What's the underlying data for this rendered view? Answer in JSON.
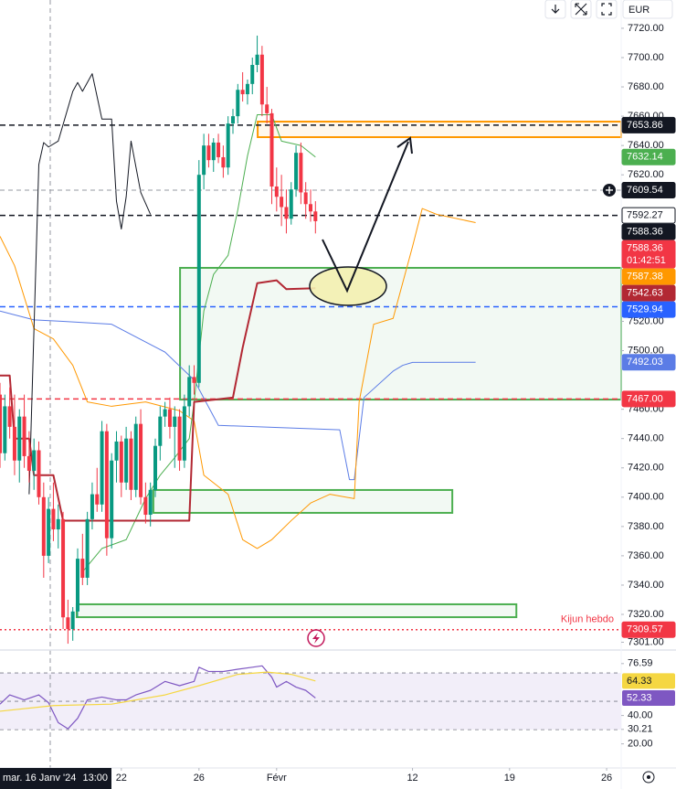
{
  "toolbar": {
    "currency": "EUR"
  },
  "chart_data": [
    {
      "type": "candlestick",
      "x": [
        0,
        1,
        2,
        3,
        4,
        5,
        6,
        7,
        8,
        9,
        10,
        11,
        12,
        13,
        14,
        15,
        16,
        17,
        18,
        19,
        20,
        21,
        22,
        23,
        24,
        25,
        26,
        27,
        28,
        29,
        30,
        31,
        32,
        33,
        34,
        35,
        36,
        37,
        38,
        39,
        40,
        41,
        42,
        43,
        44,
        45,
        46,
        47,
        48,
        49,
        50,
        51,
        52,
        53,
        54,
        55,
        56,
        57,
        58,
        59,
        60,
        61,
        62,
        63,
        64,
        65
      ],
      "open": [
        7470,
        7430,
        7462,
        7448,
        7425,
        7455,
        7428,
        7418,
        7432,
        7400,
        7360,
        7392,
        7378,
        7385,
        7318,
        7310,
        7322,
        7358,
        7345,
        7385,
        7402,
        7395,
        7445,
        7372,
        7425,
        7438,
        7410,
        7440,
        7405,
        7450,
        7400,
        7388,
        7405,
        7435,
        7455,
        7460,
        7448,
        7455,
        7425,
        7462,
        7482,
        7478,
        7620,
        7640,
        7630,
        7642,
        7632,
        7625,
        7655,
        7660,
        7678,
        7675,
        7682,
        7695,
        7702,
        7668,
        7662,
        7612,
        7605,
        7598,
        7590,
        7610,
        7635,
        7608,
        7600,
        7595
      ],
      "high": [
        7478,
        7470,
        7475,
        7470,
        7460,
        7470,
        7445,
        7440,
        7438,
        7410,
        7400,
        7410,
        7395,
        7390,
        7330,
        7325,
        7365,
        7375,
        7390,
        7410,
        7420,
        7452,
        7450,
        7430,
        7445,
        7442,
        7448,
        7445,
        7455,
        7460,
        7410,
        7410,
        7440,
        7462,
        7465,
        7468,
        7462,
        7460,
        7470,
        7490,
        7490,
        7630,
        7648,
        7648,
        7645,
        7648,
        7640,
        7660,
        7665,
        7682,
        7690,
        7685,
        7700,
        7715,
        7708,
        7680,
        7665,
        7625,
        7620,
        7610,
        7615,
        7640,
        7642,
        7615,
        7610,
        7602
      ],
      "low": [
        7420,
        7425,
        7440,
        7415,
        7410,
        7420,
        7410,
        7405,
        7395,
        7345,
        7355,
        7370,
        7365,
        7310,
        7300,
        7302,
        7318,
        7340,
        7340,
        7378,
        7390,
        7390,
        7360,
        7365,
        7410,
        7400,
        7405,
        7398,
        7400,
        7395,
        7382,
        7380,
        7400,
        7425,
        7448,
        7440,
        7420,
        7418,
        7420,
        7455,
        7470,
        7475,
        7610,
        7625,
        7622,
        7628,
        7618,
        7620,
        7648,
        7655,
        7670,
        7668,
        7675,
        7690,
        7660,
        7655,
        7600,
        7595,
        7585,
        7580,
        7586,
        7605,
        7600,
        7590,
        7588,
        7580
      ],
      "close": [
        7430,
        7462,
        7448,
        7425,
        7455,
        7428,
        7418,
        7432,
        7400,
        7360,
        7392,
        7378,
        7385,
        7318,
        7310,
        7322,
        7358,
        7345,
        7385,
        7402,
        7395,
        7445,
        7372,
        7425,
        7438,
        7410,
        7440,
        7405,
        7450,
        7400,
        7388,
        7405,
        7435,
        7455,
        7460,
        7448,
        7455,
        7425,
        7462,
        7482,
        7478,
        7620,
        7640,
        7630,
        7642,
        7632,
        7625,
        7655,
        7660,
        7678,
        7675,
        7682,
        7695,
        7702,
        7668,
        7662,
        7612,
        7605,
        7598,
        7590,
        7610,
        7635,
        7608,
        7600,
        7595,
        7588.36
      ],
      "up_color": "#089981",
      "down_color": "#f23645",
      "countdown": "01:42:51",
      "xlim": [
        0,
        128
      ],
      "xticks": [
        {
          "value": 25,
          "label": "22"
        },
        {
          "value": 41,
          "label": "26"
        },
        {
          "value": 57,
          "label": "Févr"
        },
        {
          "value": 85,
          "label": "12"
        },
        {
          "value": 105,
          "label": "19"
        },
        {
          "value": 125,
          "label": "26"
        }
      ],
      "ylim": [
        7296.3,
        7739.3
      ],
      "yticks": [
        {
          "value": 7720,
          "label": "7720.00"
        },
        {
          "value": 7700,
          "label": "7700.00"
        },
        {
          "value": 7680,
          "label": "7680.00"
        },
        {
          "value": 7660,
          "label": "7660.00"
        },
        {
          "value": 7640,
          "label": "7640.00"
        },
        {
          "value": 7620,
          "label": "7620.00"
        },
        {
          "value": 7520,
          "label": "7520.00"
        },
        {
          "value": 7500,
          "label": "7500.00"
        },
        {
          "value": 7460,
          "label": "7460.00"
        },
        {
          "value": 7440,
          "label": "7440.00"
        },
        {
          "value": 7420,
          "label": "7420.00"
        },
        {
          "value": 7400,
          "label": "7400.00"
        },
        {
          "value": 7380,
          "label": "7380.00"
        },
        {
          "value": 7360,
          "label": "7360.00"
        },
        {
          "value": 7340,
          "label": "7340.00"
        },
        {
          "value": 7320,
          "label": "7320.00"
        },
        {
          "value": 7301,
          "label": "7301.00"
        }
      ],
      "series": [
        {
          "color": "#5b7ce6",
          "width": 1,
          "last_label": true,
          "x": [
            0,
            7,
            13,
            23,
            34,
            40,
            45,
            70,
            72,
            73,
            75,
            81,
            83,
            85,
            98
          ],
          "values": [
            7527,
            7521,
            7520,
            7518,
            7499,
            7480,
            7449,
            7446,
            7412,
            7412,
            7468,
            7486,
            7490,
            7492,
            7492.03
          ]
        },
        {
          "color": "#ff9800",
          "width": 1,
          "last_label": true,
          "x": [
            0,
            3,
            7,
            11,
            15,
            18,
            23,
            30,
            37,
            40,
            42,
            47,
            50,
            53,
            56,
            60,
            64,
            68,
            73,
            74,
            77,
            81,
            85,
            87,
            90,
            98
          ],
          "values": [
            7578,
            7558,
            7515,
            7508,
            7490,
            7465,
            7462,
            7465,
            7459,
            7452,
            7415,
            7402,
            7371,
            7365,
            7371,
            7384,
            7396,
            7402,
            7399,
            7465,
            7518,
            7522,
            7571,
            7597,
            7593,
            7587.38
          ]
        },
        {
          "color": "#131722",
          "width": 1,
          "last_label": false,
          "x": [
            6,
            8,
            9,
            10,
            12,
            15,
            16,
            17,
            19,
            21,
            23,
            24,
            25,
            26,
            27,
            29,
            31
          ],
          "values": [
            7402,
            7627,
            7642,
            7639,
            7643,
            7677,
            7683,
            7677,
            7689,
            7658,
            7658,
            7602,
            7583,
            7605,
            7643,
            7608,
            7593
          ]
        },
        {
          "color": "#4caf50",
          "width": 1,
          "last_label": true,
          "x": [
            17,
            21,
            26,
            30,
            33,
            36,
            39,
            40,
            42,
            44,
            47,
            49,
            51,
            53,
            56,
            58,
            62,
            65
          ],
          "values": [
            7349,
            7365,
            7371,
            7399,
            7415,
            7427,
            7440,
            7465,
            7527,
            7552,
            7565,
            7596,
            7633,
            7661,
            7661,
            7643,
            7640,
            7632.14
          ]
        },
        {
          "color": "#b22833",
          "width": 2,
          "last_label": true,
          "x": [
            0,
            2,
            3,
            6,
            7,
            11,
            13,
            39,
            40,
            48,
            50,
            53,
            57,
            59,
            65
          ],
          "values": [
            7483,
            7483,
            7440,
            7440,
            7415,
            7415,
            7384,
            7384,
            7465,
            7468,
            7502,
            7546,
            7548,
            7542,
            7542.63
          ]
        }
      ],
      "zones": [
        {
          "color": "#ff9800",
          "x": [
            53.1,
            128
          ],
          "y": [
            7645.7,
            7656.3
          ]
        },
        {
          "color": "#4caf50",
          "x": [
            37.1,
            128
          ],
          "y": [
            7466.6,
            7556.5
          ]
        },
        {
          "color": "#4caf50",
          "x": [
            31.6,
            93.2
          ],
          "y": [
            7389.3,
            7404.9
          ]
        },
        {
          "color": "#4caf50",
          "x": [
            15.8,
            106.4
          ],
          "y": [
            7318.1,
            7326.9
          ]
        }
      ],
      "price_labels": [
        {
          "value": 7653.86,
          "bg": "#131722",
          "fg": "#ffffff",
          "line": "dashed"
        },
        {
          "value": 7592.27,
          "bg": "#ffffff",
          "fg": "#131722",
          "line": "dashed"
        },
        {
          "value": 7588.36,
          "bg": "#131722",
          "fg": "#ffffff",
          "line": "none"
        },
        {
          "value": 7529.94,
          "bg": "#2962ff",
          "fg": "#ffffff",
          "line": "dashed"
        },
        {
          "value": 7467,
          "label": "7467.00",
          "bg": "#f23645",
          "fg": "#ffffff",
          "line": "dashed"
        },
        {
          "value": 7309.57,
          "bg": "#f23645",
          "fg": "#ffffff",
          "line": "dotted",
          "note": "Kijun hebdo"
        }
      ],
      "crosshair": {
        "x": 10.35,
        "y": 7609.54,
        "date": "mar. 16 Janv '24",
        "time": "13:00"
      }
    },
    {
      "type": "line",
      "ylim": [
        3,
        85.5
      ],
      "yticks": [
        76.59,
        {
          "value": 40,
          "label": "40.00"
        },
        30.21,
        {
          "value": 20,
          "label": "20.00"
        }
      ],
      "hlines": [
        70,
        50,
        30
      ],
      "band_color": "#7e57c2",
      "series": [
        {
          "color": "#7e57c2",
          "label_fg": "#ffffff",
          "x": [
            0,
            2,
            5,
            8,
            10,
            12,
            14,
            16,
            18,
            21,
            24,
            26,
            28,
            31,
            34,
            37,
            40,
            41,
            43,
            46,
            49,
            52,
            54,
            56,
            57,
            59,
            61,
            63,
            65
          ],
          "values": [
            48,
            54.5,
            51,
            54.5,
            49,
            35,
            30.6,
            38,
            51,
            53,
            51,
            51,
            54.5,
            57.7,
            64,
            61,
            64,
            74,
            71,
            71,
            72.6,
            74,
            75,
            67,
            60,
            64,
            60,
            57.7,
            52.33
          ]
        },
        {
          "color": "#f5d742",
          "label_fg": "#131722",
          "x": [
            0,
            11,
            23,
            34,
            41,
            49,
            55,
            60,
            65
          ],
          "values": [
            43,
            47,
            48,
            54.5,
            61,
            69,
            70.6,
            69,
            64.33
          ]
        }
      ]
    }
  ]
}
